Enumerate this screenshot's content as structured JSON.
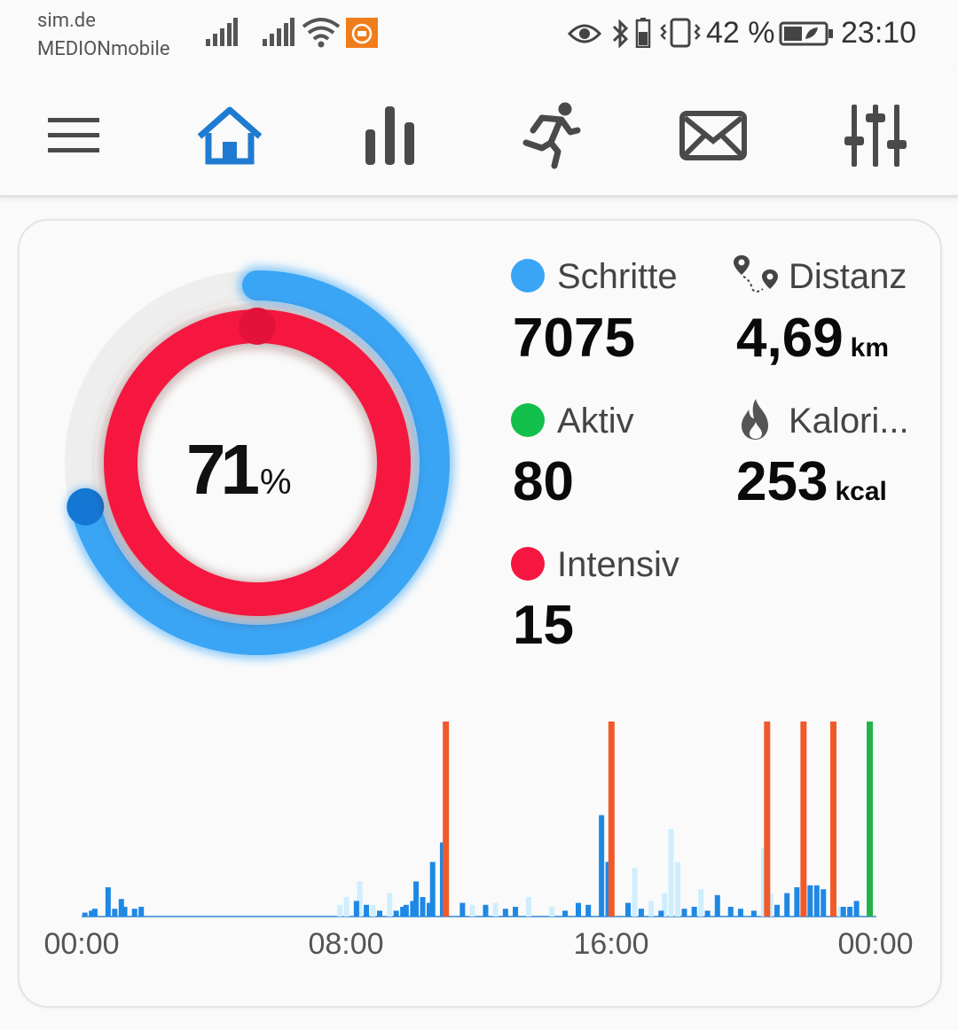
{
  "statusbar": {
    "carrier_line1": "sim.de",
    "carrier_line2": "MEDIONmobile",
    "battery_percent": "42 %",
    "time": "23:10",
    "icons": [
      "signal-icon",
      "signal-icon",
      "wifi-icon",
      "mi-app-icon",
      "eye-icon",
      "bluetooth-icon",
      "vibrate-icon",
      "battery-icon"
    ]
  },
  "navbar": {
    "items": [
      {
        "name": "menu-icon",
        "active": false
      },
      {
        "name": "home-icon",
        "active": true
      },
      {
        "name": "stats-icon",
        "active": false
      },
      {
        "name": "running-icon",
        "active": false
      },
      {
        "name": "mail-icon",
        "active": false
      },
      {
        "name": "sliders-icon",
        "active": false
      }
    ],
    "active_color": "#1e7bd1",
    "inactive_color": "#4a4a4a"
  },
  "summary": {
    "progress_value": "71",
    "progress_unit": "%",
    "steps_goal_fraction": 0.71,
    "intensive_goal_fraction": 1.0,
    "colors": {
      "steps": "#3aa5f5",
      "active": "#13c04b",
      "intensive": "#f5173f"
    }
  },
  "metrics": {
    "steps": {
      "label": "Schritte",
      "value": "7075"
    },
    "distance": {
      "label": "Distanz",
      "value": "4,69",
      "unit": "km"
    },
    "active": {
      "label": "Aktiv",
      "value": "80"
    },
    "calories": {
      "label": "Kalori...",
      "value": "253",
      "unit": "kcal"
    },
    "intensive": {
      "label": "Intensiv",
      "value": "15"
    }
  },
  "chart_data": {
    "type": "bar",
    "xlabel": "",
    "ylabel": "",
    "x_ticks": [
      "00:00",
      "08:00",
      "16:00",
      "00:00"
    ],
    "x_range_hours": [
      0,
      24
    ],
    "ylim": [
      0,
      100
    ],
    "series": [
      {
        "color": "#1e88e5",
        "values": [
          [
            0.1,
            2
          ],
          [
            0.3,
            3
          ],
          [
            0.4,
            4
          ],
          [
            0.8,
            15
          ],
          [
            1.0,
            4
          ],
          [
            1.2,
            9
          ],
          [
            1.3,
            5
          ],
          [
            1.6,
            4
          ],
          [
            1.8,
            5
          ],
          [
            8.3,
            8
          ],
          [
            8.6,
            6
          ],
          [
            9.0,
            3
          ],
          [
            9.5,
            3
          ],
          [
            9.7,
            5
          ],
          [
            9.8,
            6
          ],
          [
            10.0,
            8
          ],
          [
            10.1,
            18
          ],
          [
            10.3,
            10
          ],
          [
            10.5,
            7
          ],
          [
            10.6,
            28
          ],
          [
            10.9,
            38
          ],
          [
            11.5,
            7
          ],
          [
            12.2,
            6
          ],
          [
            12.8,
            4
          ],
          [
            13.1,
            5
          ],
          [
            14.6,
            3
          ],
          [
            15.0,
            7
          ],
          [
            15.3,
            6
          ],
          [
            15.7,
            52
          ],
          [
            15.9,
            28
          ],
          [
            16.5,
            7
          ],
          [
            16.9,
            4
          ],
          [
            17.5,
            3
          ],
          [
            18.2,
            4
          ],
          [
            18.5,
            5
          ],
          [
            18.9,
            3
          ],
          [
            19.2,
            11
          ],
          [
            19.6,
            5
          ],
          [
            19.9,
            4
          ],
          [
            20.3,
            3
          ],
          [
            21.0,
            6
          ],
          [
            21.3,
            12
          ],
          [
            21.6,
            15
          ],
          [
            21.8,
            30
          ],
          [
            22.0,
            16
          ],
          [
            22.2,
            16
          ],
          [
            22.4,
            14
          ],
          [
            22.7,
            12
          ],
          [
            23.0,
            5
          ],
          [
            23.2,
            5
          ],
          [
            23.4,
            8
          ]
        ]
      },
      {
        "color": "#cfeefd",
        "values": [
          [
            7.8,
            6
          ],
          [
            8.0,
            10
          ],
          [
            8.4,
            18
          ],
          [
            8.8,
            6
          ],
          [
            9.3,
            12
          ],
          [
            11.8,
            6
          ],
          [
            12.5,
            7
          ],
          [
            13.5,
            10
          ],
          [
            14.2,
            5
          ],
          [
            16.7,
            25
          ],
          [
            17.2,
            8
          ],
          [
            17.6,
            12
          ],
          [
            17.8,
            45
          ],
          [
            18.0,
            28
          ],
          [
            18.7,
            14
          ],
          [
            20.6,
            35
          ],
          [
            20.8,
            12
          ],
          [
            22.9,
            5
          ]
        ]
      }
    ],
    "markers": [
      {
        "x": 11.0,
        "color": "#f05a2b"
      },
      {
        "x": 16.0,
        "color": "#f05a2b"
      },
      {
        "x": 20.7,
        "color": "#f05a2b"
      },
      {
        "x": 21.8,
        "color": "#f05a2b"
      },
      {
        "x": 22.7,
        "color": "#f05a2b"
      },
      {
        "x": 23.8,
        "color": "#23b34a"
      }
    ],
    "grid": false,
    "legend": "none"
  }
}
